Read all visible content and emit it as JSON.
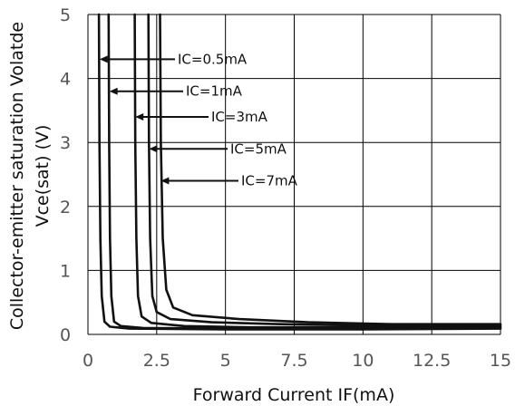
{
  "chart_data": {
    "type": "line",
    "title": "",
    "xlabel": "Forward Current IF(mA)",
    "ylabel_line1": "Collector-emitter saturation Volatde",
    "ylabel_line2": "Vce(sat)  (V)",
    "xlim": [
      0,
      15
    ],
    "ylim": [
      0,
      5
    ],
    "x_ticks": [
      "0",
      "2.5",
      "5",
      "7.5",
      "10",
      "12.5",
      "15"
    ],
    "y_ticks": [
      "0",
      "1",
      "2",
      "3",
      "4",
      "5"
    ],
    "grid": true,
    "series": [
      {
        "name": "IC=0.5mA",
        "x": [
          0.4,
          0.42,
          0.45,
          0.5,
          0.6,
          0.8,
          1.5,
          5,
          10,
          15
        ],
        "y": [
          5.0,
          3.0,
          1.5,
          0.6,
          0.2,
          0.12,
          0.09,
          0.08,
          0.08,
          0.09
        ]
      },
      {
        "name": "IC=1mA",
        "x": [
          0.75,
          0.77,
          0.8,
          0.85,
          0.95,
          1.2,
          2,
          5,
          10,
          15
        ],
        "y": [
          5.0,
          3.0,
          1.5,
          0.6,
          0.2,
          0.13,
          0.1,
          0.09,
          0.1,
          0.11
        ]
      },
      {
        "name": "IC=3mA",
        "x": [
          1.7,
          1.72,
          1.76,
          1.82,
          1.95,
          2.3,
          3.5,
          6,
          10,
          15
        ],
        "y": [
          5.0,
          3.0,
          1.5,
          0.6,
          0.28,
          0.18,
          0.13,
          0.11,
          0.11,
          0.12
        ]
      },
      {
        "name": "IC=5mA",
        "x": [
          2.2,
          2.22,
          2.26,
          2.34,
          2.5,
          3.0,
          4.5,
          7,
          10,
          15
        ],
        "y": [
          5.0,
          3.0,
          1.5,
          0.6,
          0.35,
          0.24,
          0.19,
          0.16,
          0.14,
          0.14
        ]
      },
      {
        "name": "IC=7mA",
        "x": [
          2.62,
          2.65,
          2.72,
          2.85,
          3.1,
          3.8,
          5.5,
          8,
          11,
          15
        ],
        "y": [
          5.0,
          3.0,
          1.5,
          0.7,
          0.42,
          0.3,
          0.24,
          0.19,
          0.16,
          0.16
        ]
      }
    ],
    "annotations": [
      {
        "text": "IC=0.5mA",
        "arrow_to": [
          0.42,
          4.3
        ]
      },
      {
        "text": "IC=1mA",
        "arrow_to": [
          0.78,
          3.8
        ]
      },
      {
        "text": "IC=3mA",
        "arrow_to": [
          1.72,
          3.4
        ]
      },
      {
        "text": "IC=5mA",
        "arrow_to": [
          2.22,
          2.9
        ]
      },
      {
        "text": "IC=7mA",
        "arrow_to": [
          2.65,
          2.4
        ]
      }
    ]
  }
}
